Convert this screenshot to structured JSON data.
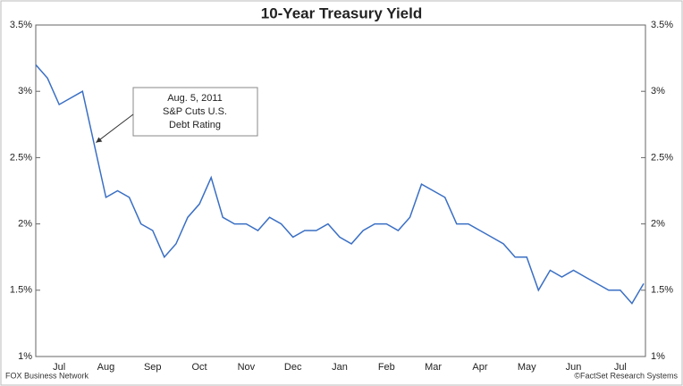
{
  "chart_data": {
    "type": "line",
    "title": "10-Year Treasury Yield",
    "categories": [
      null,
      null,
      "Jul",
      null,
      null,
      null,
      "Aug",
      null,
      null,
      null,
      "Sep",
      null,
      null,
      null,
      "Oct",
      null,
      null,
      null,
      "Nov",
      null,
      null,
      null,
      "Dec",
      null,
      null,
      null,
      "Jan",
      null,
      null,
      null,
      "Feb",
      null,
      null,
      null,
      "Mar",
      null,
      null,
      null,
      "Apr",
      null,
      null,
      null,
      "May",
      null,
      null,
      null,
      "Jun",
      null,
      null,
      null,
      "Jul",
      null,
      null
    ],
    "series": [
      {
        "name": "10-Year Treasury Yield",
        "color": "#3a6fc4",
        "values": [
          3.2,
          3.1,
          2.9,
          2.95,
          3.0,
          2.6,
          2.2,
          2.25,
          2.2,
          2.0,
          1.95,
          1.75,
          1.85,
          2.05,
          2.15,
          2.35,
          2.05,
          2.0,
          2.0,
          1.95,
          2.05,
          2.0,
          1.9,
          1.95,
          1.95,
          2.0,
          1.9,
          1.85,
          1.95,
          2.0,
          2.0,
          1.95,
          2.05,
          2.3,
          2.25,
          2.2,
          2.0,
          2.0,
          1.95,
          1.9,
          1.85,
          1.75,
          1.75,
          1.5,
          1.65,
          1.6,
          1.65,
          1.6,
          1.55,
          1.5,
          1.5,
          1.4,
          1.55
        ]
      }
    ],
    "ylim": [
      1,
      3.5
    ],
    "yticks": [
      {
        "value": 1,
        "label": "1%"
      },
      {
        "value": 1.5,
        "label": "1.5%"
      },
      {
        "value": 2,
        "label": "2%"
      },
      {
        "value": 2.5,
        "label": "2.5%"
      },
      {
        "value": 3,
        "label": "3%"
      },
      {
        "value": 3.5,
        "label": "3.5%"
      }
    ],
    "y2lim": [
      1,
      3.5
    ],
    "y2ticks": [
      {
        "value": 1,
        "label": "1%"
      },
      {
        "value": 1.5,
        "label": "1.5%"
      },
      {
        "value": 2,
        "label": "2%"
      },
      {
        "value": 2.5,
        "label": "2.5%"
      },
      {
        "value": 3,
        "label": "3%"
      },
      {
        "value": 3.5,
        "label": "3.5%"
      }
    ],
    "annotation": {
      "lines": [
        "Aug. 5, 2011",
        "S&P Cuts U.S.",
        "Debt Rating"
      ],
      "index": 5
    },
    "source_left": "FOX Business Network",
    "source_right": "©FactSet Research Systems",
    "grid": false
  }
}
